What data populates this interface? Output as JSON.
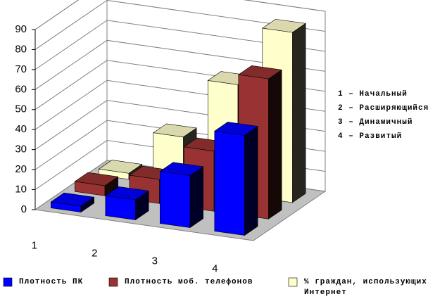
{
  "chart_data": {
    "type": "bar3d",
    "categories": [
      "1",
      "2",
      "3",
      "4"
    ],
    "series": [
      {
        "name": "Плотность ПК",
        "color": "#0000ff",
        "values": [
          3,
          10,
          26,
          50
        ]
      },
      {
        "name": "Плотность моб. телефонов",
        "color": "#993333",
        "values": [
          5,
          12,
          30,
          70
        ]
      },
      {
        "name": "% граждан, использующих Интернет",
        "color": "#ffffcc",
        "values": [
          3,
          25,
          55,
          85
        ]
      }
    ],
    "ylim": [
      0,
      90
    ],
    "yticks": [
      0,
      10,
      20,
      30,
      40,
      50,
      60,
      70,
      80,
      90
    ],
    "grid": true,
    "annotations": [
      "1 – Начальный",
      "2 – Расширяющийся",
      "3 – Динамичный",
      "4 – Развитый"
    ]
  }
}
